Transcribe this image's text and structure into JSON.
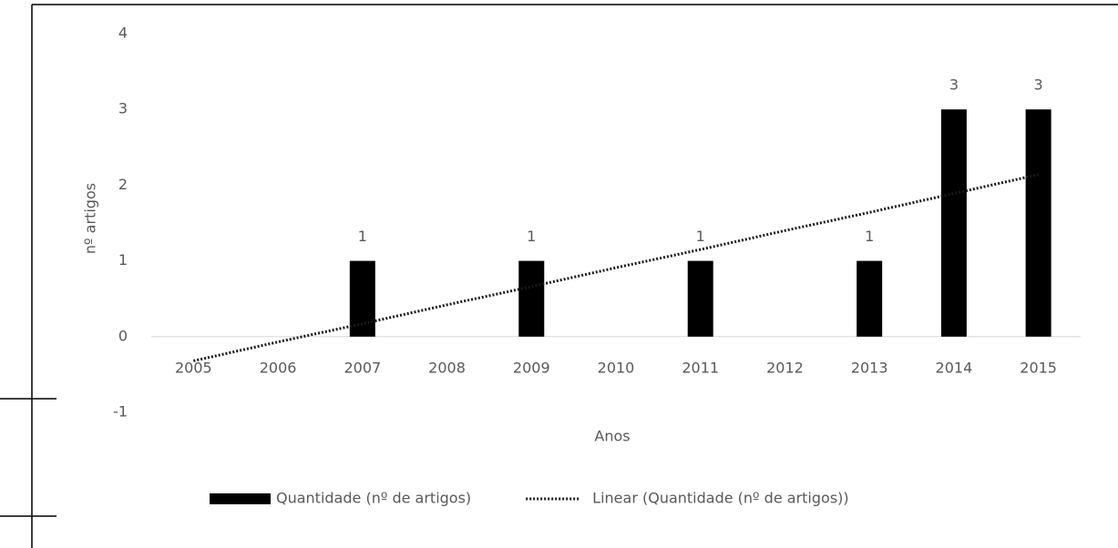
{
  "chart_data": {
    "type": "bar",
    "categories": [
      "2005",
      "2006",
      "2007",
      "2008",
      "2009",
      "2010",
      "2011",
      "2012",
      "2013",
      "2014",
      "2015"
    ],
    "series": [
      {
        "name": "Quantidade (nº de artigos)",
        "color": "#000000",
        "values": [
          0,
          0,
          1,
          0,
          1,
          0,
          1,
          0,
          1,
          3,
          3
        ],
        "value_labels": [
          null,
          null,
          "1",
          null,
          "1",
          null,
          "1",
          null,
          "1",
          "3",
          "3"
        ]
      },
      {
        "name": "Linear (Quantidade (nº de artigos))",
        "type": "line",
        "style": "dotted",
        "color": "#1a1a1a",
        "values": [
          -0.32,
          -0.07,
          0.17,
          0.42,
          0.66,
          0.91,
          1.15,
          1.4,
          1.64,
          1.89,
          2.14
        ]
      }
    ],
    "y_label": "nº artigos",
    "x_label": "Anos",
    "ylim": [
      -1,
      4
    ],
    "yticks": [
      -1,
      0,
      1,
      2,
      3,
      4
    ],
    "grid": false,
    "legend": "bottom"
  }
}
